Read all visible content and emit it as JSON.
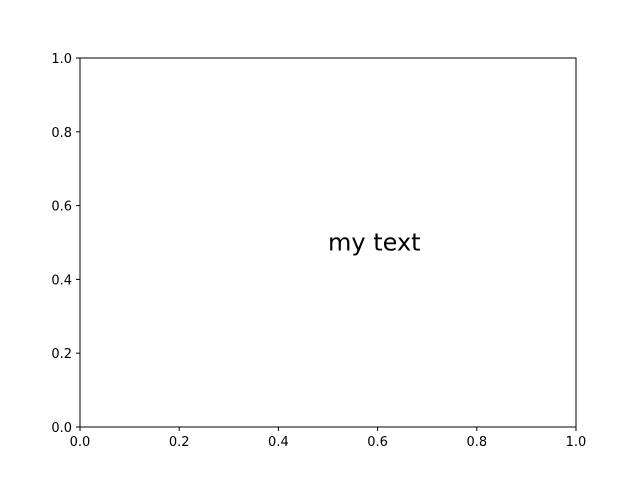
{
  "chart_data": {
    "type": "scatter",
    "title": "",
    "xlabel": "",
    "ylabel": "",
    "xlim": [
      0,
      1
    ],
    "ylim": [
      0,
      1
    ],
    "x_ticks": [
      "0.0",
      "0.2",
      "0.4",
      "0.6",
      "0.8",
      "1.0"
    ],
    "y_ticks": [
      "0.0",
      "0.2",
      "0.4",
      "0.6",
      "0.8",
      "1.0"
    ],
    "grid": false,
    "legend": "none",
    "series": [],
    "annotations": [
      {
        "text": "my text",
        "x": 0.5,
        "y": 0.5
      }
    ],
    "colors": {
      "axes": "#000000",
      "background": "#ffffff",
      "text": "#000000"
    }
  }
}
